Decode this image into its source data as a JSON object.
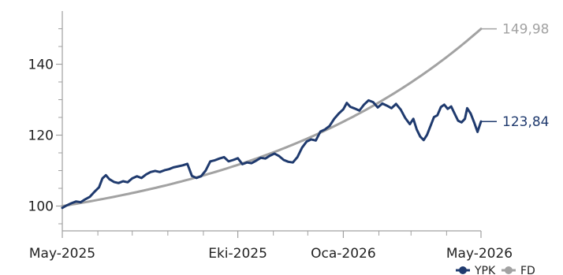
{
  "chart_data": {
    "type": "line",
    "x_range": [
      "2025-05-01",
      "2026-05-01"
    ],
    "x_tick_labels": [
      "May-2025",
      "Eki-2025",
      "Oca-2026",
      "May-2026"
    ],
    "x_tick_dates": [
      "2025-05-01",
      "2025-10-01",
      "2026-01-01",
      "2026-05-01"
    ],
    "x_minor_tick_dates": [
      "2025-06-01",
      "2025-07-01",
      "2025-08-01",
      "2025-09-01",
      "2025-11-01",
      "2025-12-01",
      "2026-02-01",
      "2026-03-01",
      "2026-04-01"
    ],
    "ylim": [
      93,
      155
    ],
    "y_ticks": [
      100,
      120,
      140
    ],
    "grid": false,
    "legend_position": "bottom-right",
    "series": [
      {
        "name": "YPK",
        "color": "#1f3a6e",
        "end_label": "123,84",
        "points": [
          [
            "2025-05-01",
            99.5
          ],
          [
            "2025-05-05",
            100.2
          ],
          [
            "2025-05-09",
            100.8
          ],
          [
            "2025-05-13",
            101.3
          ],
          [
            "2025-05-17",
            101.1
          ],
          [
            "2025-05-21",
            101.9
          ],
          [
            "2025-05-25",
            102.6
          ],
          [
            "2025-05-29",
            104.0
          ],
          [
            "2025-06-02",
            105.3
          ],
          [
            "2025-06-05",
            107.8
          ],
          [
            "2025-06-08",
            108.7
          ],
          [
            "2025-06-11",
            107.6
          ],
          [
            "2025-06-15",
            106.8
          ],
          [
            "2025-06-19",
            106.5
          ],
          [
            "2025-06-23",
            107.0
          ],
          [
            "2025-06-27",
            106.7
          ],
          [
            "2025-07-01",
            107.8
          ],
          [
            "2025-07-05",
            108.4
          ],
          [
            "2025-07-09",
            107.9
          ],
          [
            "2025-07-13",
            108.9
          ],
          [
            "2025-07-17",
            109.6
          ],
          [
            "2025-07-21",
            109.9
          ],
          [
            "2025-07-25",
            109.6
          ],
          [
            "2025-07-29",
            110.1
          ],
          [
            "2025-08-02",
            110.4
          ],
          [
            "2025-08-06",
            110.9
          ],
          [
            "2025-08-10",
            111.2
          ],
          [
            "2025-08-14",
            111.5
          ],
          [
            "2025-08-18",
            111.9
          ],
          [
            "2025-08-22",
            108.5
          ],
          [
            "2025-08-26",
            107.9
          ],
          [
            "2025-08-30",
            108.4
          ],
          [
            "2025-09-03",
            110.0
          ],
          [
            "2025-09-07",
            112.6
          ],
          [
            "2025-09-11",
            112.9
          ],
          [
            "2025-09-15",
            113.4
          ],
          [
            "2025-09-19",
            113.8
          ],
          [
            "2025-09-23",
            112.6
          ],
          [
            "2025-09-27",
            113.0
          ],
          [
            "2025-10-01",
            113.5
          ],
          [
            "2025-10-05",
            111.8
          ],
          [
            "2025-10-09",
            112.3
          ],
          [
            "2025-10-13",
            112.1
          ],
          [
            "2025-10-17",
            112.8
          ],
          [
            "2025-10-21",
            113.6
          ],
          [
            "2025-10-25",
            113.4
          ],
          [
            "2025-10-29",
            114.2
          ],
          [
            "2025-11-02",
            114.8
          ],
          [
            "2025-11-06",
            114.1
          ],
          [
            "2025-11-10",
            113.0
          ],
          [
            "2025-11-14",
            112.5
          ],
          [
            "2025-11-18",
            112.3
          ],
          [
            "2025-11-22",
            113.8
          ],
          [
            "2025-11-26",
            116.5
          ],
          [
            "2025-11-30",
            118.2
          ],
          [
            "2025-12-04",
            118.8
          ],
          [
            "2025-12-08",
            118.5
          ],
          [
            "2025-12-12",
            121.0
          ],
          [
            "2025-12-16",
            121.6
          ],
          [
            "2025-12-20",
            122.6
          ],
          [
            "2025-12-24",
            124.6
          ],
          [
            "2025-12-28",
            126.1
          ],
          [
            "2026-01-01",
            127.3
          ],
          [
            "2026-01-04",
            129.1
          ],
          [
            "2026-01-07",
            128.0
          ],
          [
            "2026-01-11",
            127.5
          ],
          [
            "2026-01-15",
            126.9
          ],
          [
            "2026-01-19",
            128.6
          ],
          [
            "2026-01-23",
            129.8
          ],
          [
            "2026-01-27",
            129.3
          ],
          [
            "2026-01-31",
            127.8
          ],
          [
            "2026-02-04",
            128.9
          ],
          [
            "2026-02-08",
            128.3
          ],
          [
            "2026-02-12",
            127.6
          ],
          [
            "2026-02-16",
            128.8
          ],
          [
            "2026-02-20",
            127.2
          ],
          [
            "2026-02-24",
            124.8
          ],
          [
            "2026-02-28",
            123.1
          ],
          [
            "2026-03-03",
            124.6
          ],
          [
            "2026-03-06",
            121.6
          ],
          [
            "2026-03-09",
            119.6
          ],
          [
            "2026-03-12",
            118.6
          ],
          [
            "2026-03-15",
            120.1
          ],
          [
            "2026-03-18",
            122.6
          ],
          [
            "2026-03-21",
            125.1
          ],
          [
            "2026-03-24",
            125.6
          ],
          [
            "2026-03-27",
            127.9
          ],
          [
            "2026-03-30",
            128.6
          ],
          [
            "2026-04-02",
            127.4
          ],
          [
            "2026-04-05",
            128.1
          ],
          [
            "2026-04-08",
            126.1
          ],
          [
            "2026-04-11",
            124.1
          ],
          [
            "2026-04-14",
            123.6
          ],
          [
            "2026-04-17",
            124.6
          ],
          [
            "2026-04-19",
            127.6
          ],
          [
            "2026-04-22",
            126.1
          ],
          [
            "2026-04-25",
            123.6
          ],
          [
            "2026-04-28",
            120.9
          ],
          [
            "2026-05-01",
            123.84
          ]
        ]
      },
      {
        "name": "FD",
        "color": "#a2a2a2",
        "end_label": "149,98",
        "start_value": 100.0,
        "end_value": 149.98,
        "growth_curvature": 1.7
      }
    ]
  }
}
